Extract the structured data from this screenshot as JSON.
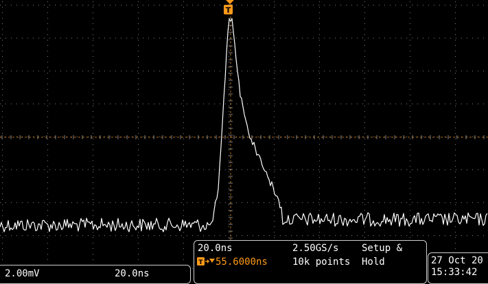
{
  "colors": {
    "waveform": "#ffffff",
    "grid": "#808080",
    "trigger": "#ff9a1a",
    "background": "#000000"
  },
  "trigger_marker": {
    "icon": "trigger-T-icon",
    "glyph": "T"
  },
  "readouts": {
    "channel_scale": "2.00mV",
    "timebase_left": "20.0ns",
    "timebase": "20.0ns",
    "trigger_position": "55.6000ns",
    "sample_rate": "2.50GS/s",
    "record_length": "10k points",
    "setup_hold_line1": "Setup &",
    "setup_hold_line2": "Hold",
    "date": "27 Oct  20",
    "time": "15:33:42"
  }
}
